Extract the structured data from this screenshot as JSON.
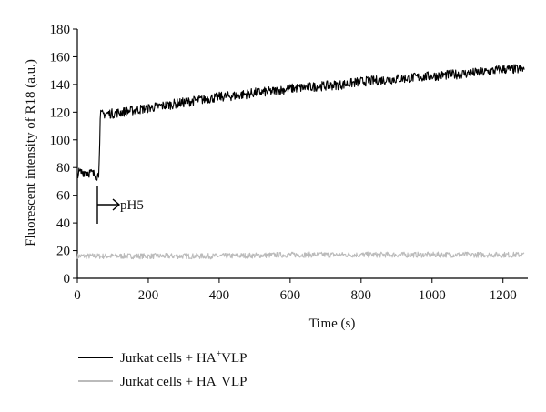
{
  "chart_data": {
    "type": "line",
    "xlabel": "Time (s)",
    "ylabel": "Fluorescent intensity of R18 (a.u.)",
    "xlim": [
      0,
      1270
    ],
    "ylim": [
      0,
      180
    ],
    "xticks": [
      0,
      200,
      400,
      600,
      800,
      1000,
      1200
    ],
    "yticks": [
      0,
      20,
      40,
      60,
      80,
      100,
      120,
      140,
      160,
      180
    ],
    "grid": false,
    "legend_position": "bottom-left",
    "annotation": {
      "text": "pH5",
      "x": 60
    },
    "series": [
      {
        "name": "Jurkat cells + HA⁺VLP",
        "name_prefix": "Jurkat cells + HA",
        "name_sup": "+",
        "name_suffix": "VLP",
        "color": "#000000",
        "x": [
          0,
          20,
          40,
          55,
          60,
          65,
          80,
          100,
          150,
          200,
          250,
          300,
          350,
          400,
          450,
          500,
          550,
          600,
          650,
          700,
          750,
          800,
          850,
          900,
          950,
          1000,
          1050,
          1100,
          1150,
          1200,
          1260
        ],
        "y": [
          76,
          77,
          76,
          74,
          75,
          118,
          119,
          119,
          121,
          123,
          125,
          127,
          129,
          131,
          132,
          134,
          135,
          137,
          138,
          139,
          140,
          142,
          143,
          144,
          145,
          146,
          147,
          148,
          149,
          151,
          151
        ],
        "noise": 3.5
      },
      {
        "name": "Jurkat cells + HA⁻VLP",
        "name_prefix": "Jurkat cells + HA",
        "name_sup": "−",
        "name_suffix": "VLP",
        "color": "#bbbbbb",
        "x": [
          0,
          200,
          400,
          600,
          800,
          1000,
          1200,
          1260
        ],
        "y": [
          16,
          16,
          16,
          17,
          17,
          17,
          17,
          17
        ],
        "noise": 2.0
      }
    ]
  }
}
